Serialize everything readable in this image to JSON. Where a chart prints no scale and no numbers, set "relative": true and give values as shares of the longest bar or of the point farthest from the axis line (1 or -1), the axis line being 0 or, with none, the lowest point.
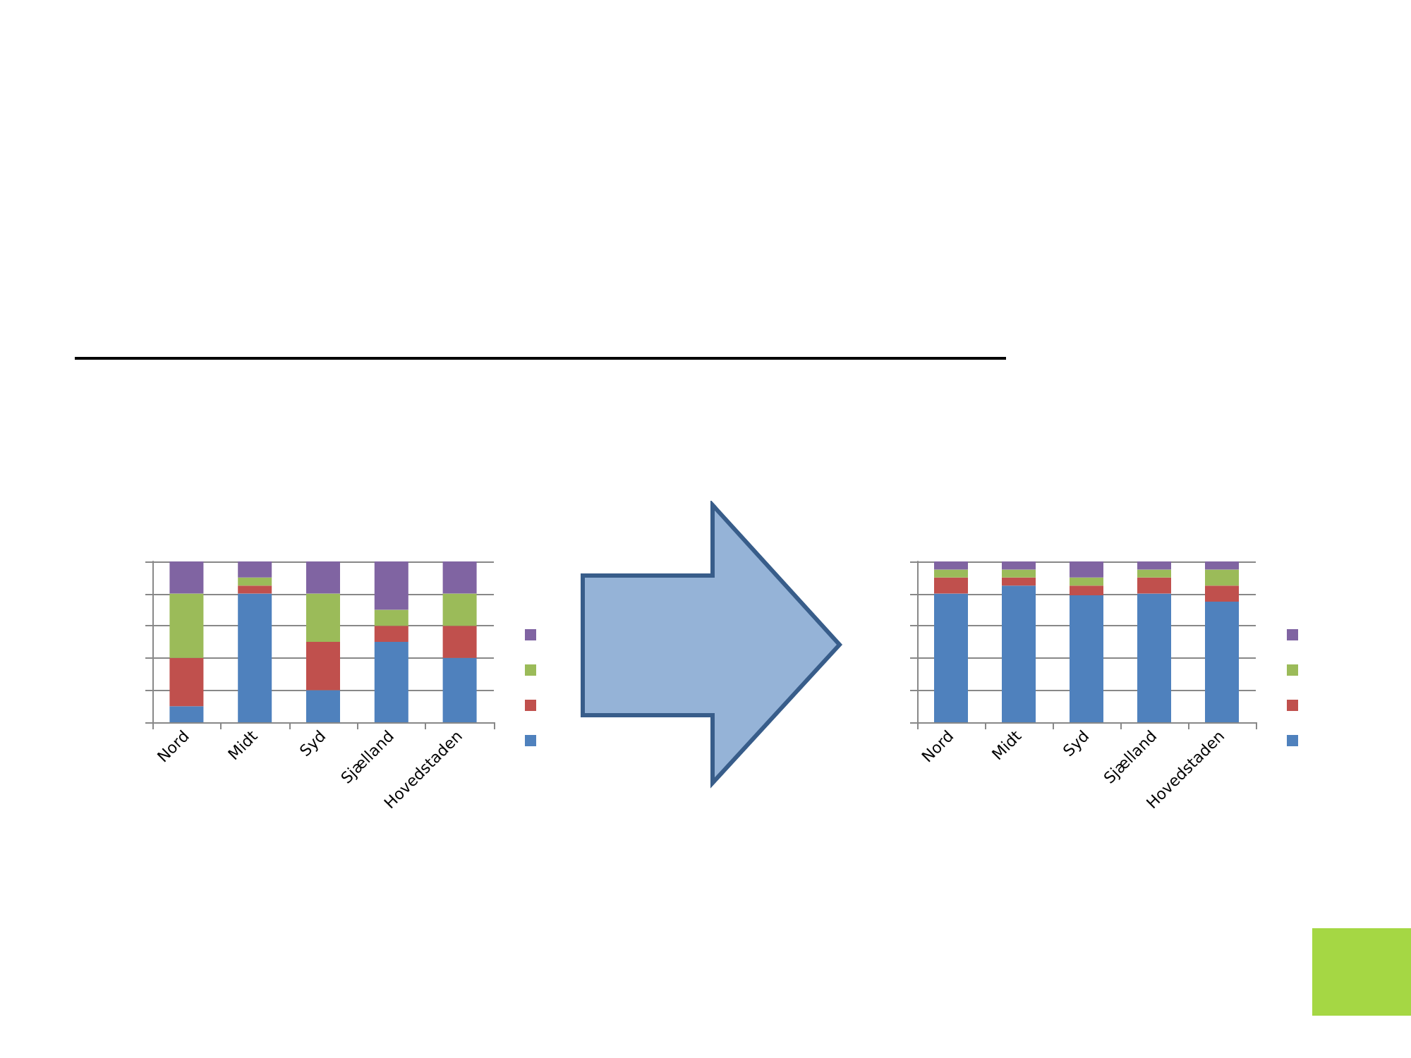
{
  "chart_data": [
    {
      "type": "bar",
      "stacked": true,
      "relative": true,
      "grid": "y",
      "categories": [
        "Nord",
        "Midt",
        "Syd",
        "Sjælland",
        "Hovedstaden"
      ],
      "series": [
        {
          "color": "#4f81bd",
          "values": [
            0.1,
            0.8,
            0.2,
            0.5,
            0.4
          ]
        },
        {
          "color": "#c0504d",
          "values": [
            0.3,
            0.05,
            0.3,
            0.1,
            0.2
          ]
        },
        {
          "color": "#9bbb59",
          "values": [
            0.4,
            0.05,
            0.3,
            0.1,
            0.2
          ]
        },
        {
          "color": "#8064a2",
          "values": [
            0.2,
            0.1,
            0.2,
            0.3,
            0.2
          ]
        }
      ]
    },
    {
      "type": "bar",
      "stacked": true,
      "relative": true,
      "grid": "y",
      "categories": [
        "Nord",
        "Midt",
        "Syd",
        "Sjælland",
        "Hovedstaden"
      ],
      "series": [
        {
          "color": "#4f81bd",
          "values": [
            0.8,
            0.85,
            0.79,
            0.8,
            0.75
          ]
        },
        {
          "color": "#c0504d",
          "values": [
            0.1,
            0.05,
            0.06,
            0.1,
            0.1
          ]
        },
        {
          "color": "#9bbb59",
          "values": [
            0.05,
            0.05,
            0.05,
            0.05,
            0.1
          ]
        },
        {
          "color": "#8064a2",
          "values": [
            0.05,
            0.05,
            0.1,
            0.05,
            0.05
          ]
        }
      ]
    }
  ]
}
